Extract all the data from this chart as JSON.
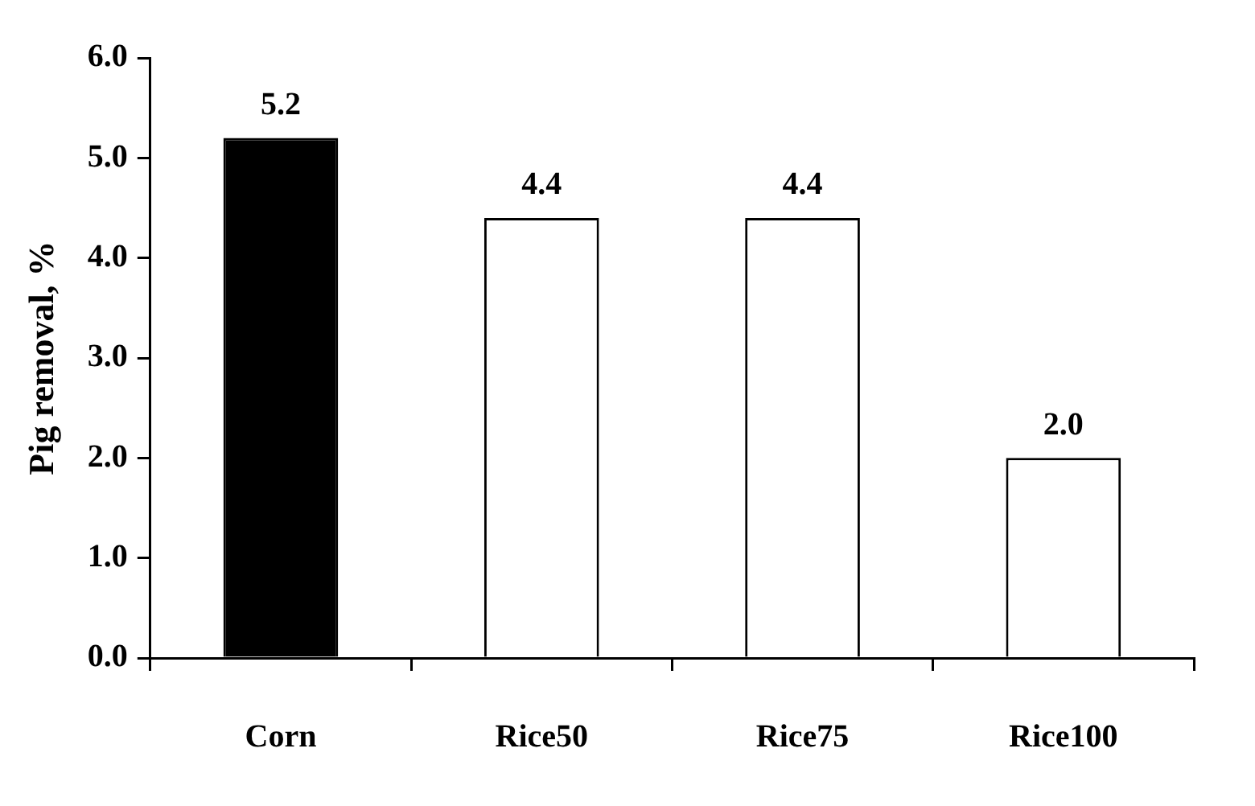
{
  "chart_data": {
    "type": "bar",
    "ylabel": "Pig removal, %",
    "categories": [
      "Corn",
      "Rice50",
      "Rice75",
      "Rice100"
    ],
    "values": [
      5.2,
      4.4,
      4.4,
      2.0
    ],
    "colors": [
      "#000000",
      "#ffffff",
      "#ffffff",
      "#ffffff"
    ],
    "value_labels": [
      "5.2",
      "4.4",
      "4.4",
      "2.0"
    ],
    "ylim": [
      0,
      6
    ],
    "yticks": [
      {
        "value": 0,
        "label": "0.0"
      },
      {
        "value": 1,
        "label": "1.0"
      },
      {
        "value": 2,
        "label": "2.0"
      },
      {
        "value": 3,
        "label": "3.0"
      },
      {
        "value": 4,
        "label": "4.0"
      },
      {
        "value": 5,
        "label": "5.0"
      },
      {
        "value": 6,
        "label": "6.0"
      }
    ],
    "grid": false,
    "legend": false
  }
}
